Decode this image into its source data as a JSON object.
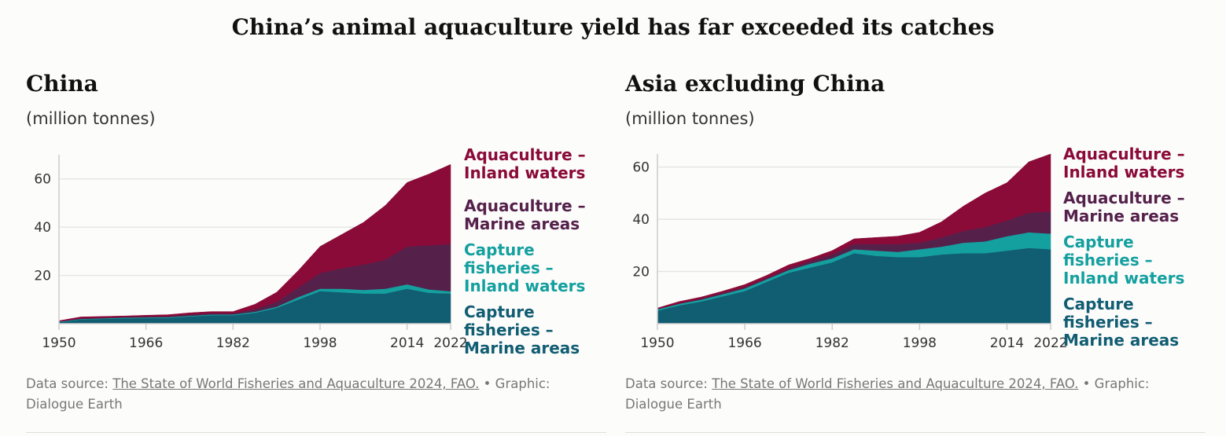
{
  "title": "China’s animal aquaculture yield has far exceeded its catches",
  "source_prefix": "Data source: ",
  "source_link": "The State of World Fisheries and Aquaculture 2024, FAO.",
  "source_suffix": " • Graphic: Dialogue Earth",
  "colors": {
    "capture_marine": "#115d72",
    "capture_inland": "#14a09f",
    "aqua_marine": "#55214b",
    "aqua_inland": "#8a0a38"
  },
  "chart_data": [
    {
      "type": "area",
      "stacked": true,
      "title": "China",
      "subtitle": "(million tonnes)",
      "x": [
        1950,
        1954,
        1958,
        1962,
        1966,
        1970,
        1974,
        1978,
        1982,
        1986,
        1990,
        1994,
        1998,
        2002,
        2006,
        2010,
        2014,
        2018,
        2022
      ],
      "xticks": [
        "1950",
        "1966",
        "1982",
        "1998",
        "2014",
        "2022"
      ],
      "yticks": [
        "20",
        "40",
        "60"
      ],
      "ylim": [
        0,
        70
      ],
      "grid": true,
      "series": [
        {
          "name": "Capture fisheries - Marine areas",
          "color": "#115d72",
          "values": [
            0.6,
            1.8,
            2.0,
            2.2,
            2.3,
            2.4,
            3.0,
            3.5,
            3.5,
            4.5,
            6.5,
            10.0,
            13.5,
            13.0,
            12.5,
            12.5,
            14.5,
            12.8,
            12.5
          ]
        },
        {
          "name": "Capture fisheries - Inland waters",
          "color": "#14a09f",
          "values": [
            0.2,
            0.2,
            0.2,
            0.3,
            0.3,
            0.3,
            0.3,
            0.3,
            0.3,
            0.4,
            0.5,
            1.0,
            1.0,
            1.5,
            1.5,
            2.0,
            1.8,
            1.4,
            0.9
          ]
        },
        {
          "name": "Aquaculture - Marine areas",
          "color": "#55214b",
          "values": [
            0.1,
            0.2,
            0.3,
            0.3,
            0.4,
            0.4,
            0.5,
            0.5,
            0.5,
            1.1,
            2.0,
            4.0,
            6.5,
            8.5,
            10.5,
            12.0,
            15.7,
            18.3,
            19.6
          ]
        },
        {
          "name": "Aquaculture - Inland waters",
          "color": "#8a0a38",
          "values": [
            0.3,
            0.6,
            0.5,
            0.4,
            0.5,
            0.6,
            0.7,
            0.7,
            0.7,
            2.0,
            4.0,
            7.0,
            11.0,
            14.0,
            17.5,
            22.5,
            26.5,
            29.5,
            33.0
          ]
        }
      ]
    },
    {
      "type": "area",
      "stacked": true,
      "title": "Asia excluding China",
      "subtitle": "(million tonnes)",
      "x": [
        1950,
        1954,
        1958,
        1962,
        1966,
        1970,
        1974,
        1978,
        1982,
        1986,
        1990,
        1994,
        1998,
        2002,
        2006,
        2010,
        2014,
        2018,
        2022
      ],
      "xticks": [
        "1950",
        "1966",
        "1982",
        "1998",
        "2014",
        "2022"
      ],
      "yticks": [
        "20",
        "40",
        "60"
      ],
      "ylim": [
        0,
        65
      ],
      "grid": true,
      "series": [
        {
          "name": "Capture fisheries - Marine areas",
          "color": "#115d72",
          "values": [
            5.0,
            7.0,
            8.5,
            10.5,
            12.5,
            16.0,
            19.5,
            21.5,
            23.5,
            27.0,
            26.0,
            25.5,
            25.5,
            26.5,
            27.0,
            27.0,
            28.0,
            29.0,
            28.5
          ]
        },
        {
          "name": "Capture fisheries - Inland waters",
          "color": "#14a09f",
          "values": [
            0.5,
            0.6,
            0.7,
            0.8,
            1.0,
            1.0,
            1.0,
            1.5,
            1.5,
            1.5,
            2.0,
            2.0,
            3.0,
            3.0,
            4.0,
            4.5,
            5.5,
            6.0,
            6.0
          ]
        },
        {
          "name": "Aquaculture - Marine areas",
          "color": "#55214b",
          "values": [
            0.2,
            0.2,
            0.4,
            0.5,
            0.5,
            0.5,
            0.7,
            1.0,
            1.5,
            2.0,
            2.5,
            3.0,
            2.5,
            3.5,
            4.5,
            5.5,
            6.0,
            7.5,
            8.5
          ]
        },
        {
          "name": "Aquaculture - Inland waters",
          "color": "#8a0a38",
          "values": [
            0.3,
            0.7,
            0.6,
            0.7,
            1.0,
            1.0,
            1.3,
            1.0,
            1.5,
            2.0,
            2.5,
            3.0,
            4.0,
            6.0,
            9.5,
            13.0,
            14.5,
            19.5,
            22.0
          ]
        }
      ]
    }
  ],
  "legend": {
    "aqua_inland": [
      "Aquaculture –",
      "Inland waters"
    ],
    "aqua_marine": [
      "Aquaculture –",
      "Marine areas"
    ],
    "capture_inland": [
      "Capture",
      "fisheries –",
      "Inland waters"
    ],
    "capture_marine": [
      "Capture",
      "fisheries –",
      "Marine areas"
    ]
  }
}
